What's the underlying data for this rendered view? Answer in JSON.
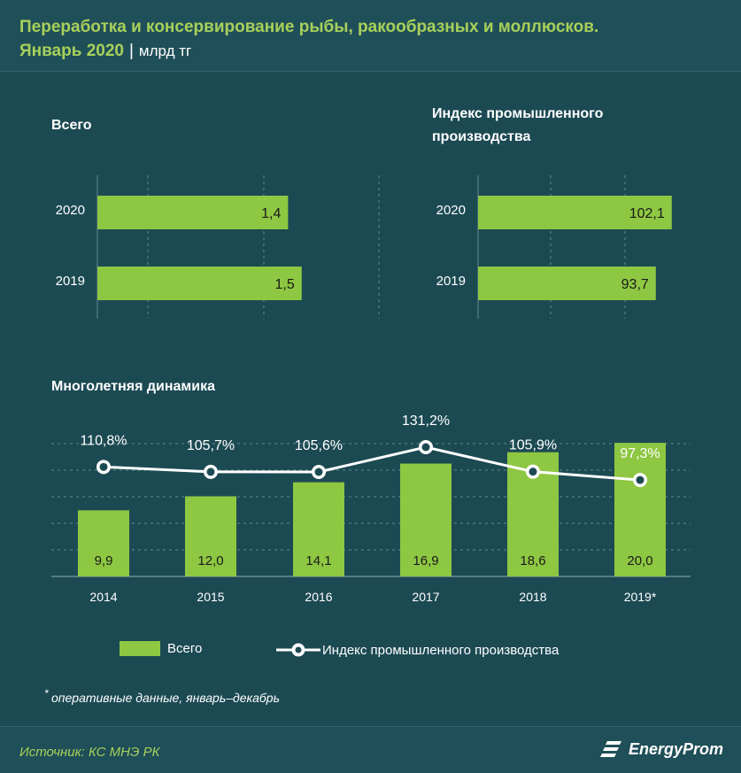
{
  "title": {
    "line1": "Переработка и консервирование рыбы, ракообразных и моллюсков.",
    "line2": "Январь 2020",
    "separator": "|",
    "unit": "млрд тг"
  },
  "panels": {
    "total_title": "Всего",
    "index_title_line1": "Индекс промышленного",
    "index_title_line2": "производства",
    "dynamics_title": "Многолетняя динамика"
  },
  "legend": {
    "bar_label": "Всего",
    "line_label": "Индекс промышленного производства"
  },
  "note": {
    "star": "*",
    "text": "оперативные данные, январь–декабрь"
  },
  "footer": {
    "source": "Источник: КС МНЭ РК",
    "logo": "EnergyProm"
  },
  "colors": {
    "background": "#1c4a53",
    "bar": "#8ec742",
    "title": "#a8d05a",
    "text": "#ffffff"
  },
  "chart_data": [
    {
      "type": "bar",
      "orientation": "horizontal",
      "title": "Всего",
      "categories": [
        "2020",
        "2019"
      ],
      "values": [
        1.4,
        1.5
      ],
      "labels": [
        "1,4",
        "1,5"
      ],
      "xlim": [
        0,
        1.95
      ]
    },
    {
      "type": "bar",
      "orientation": "horizontal",
      "title": "Индекс промышленного производства",
      "categories": [
        "2020",
        "2019"
      ],
      "values": [
        102.1,
        93.7
      ],
      "labels": [
        "102,1",
        "93,7"
      ],
      "xlim": [
        0,
        140
      ]
    },
    {
      "type": "bar+line",
      "title": "Многолетняя динамика",
      "categories": [
        "2014",
        "2015",
        "2016",
        "2017",
        "2018",
        "2019*"
      ],
      "series": [
        {
          "name": "Всего",
          "values": [
            9.9,
            12.0,
            14.1,
            16.9,
            18.6,
            20.0
          ],
          "labels": [
            "9,9",
            "12,0",
            "14,1",
            "16,9",
            "18,6",
            "20,0"
          ],
          "ylim": [
            0,
            24
          ]
        },
        {
          "name": "Индекс промышленного производства",
          "values": [
            110.8,
            105.7,
            105.6,
            131.2,
            105.9,
            97.3
          ],
          "labels": [
            "110,8%",
            "105,7%",
            "105,6%",
            "131,2%",
            "105,9%",
            "97,3%"
          ]
        }
      ]
    }
  ]
}
